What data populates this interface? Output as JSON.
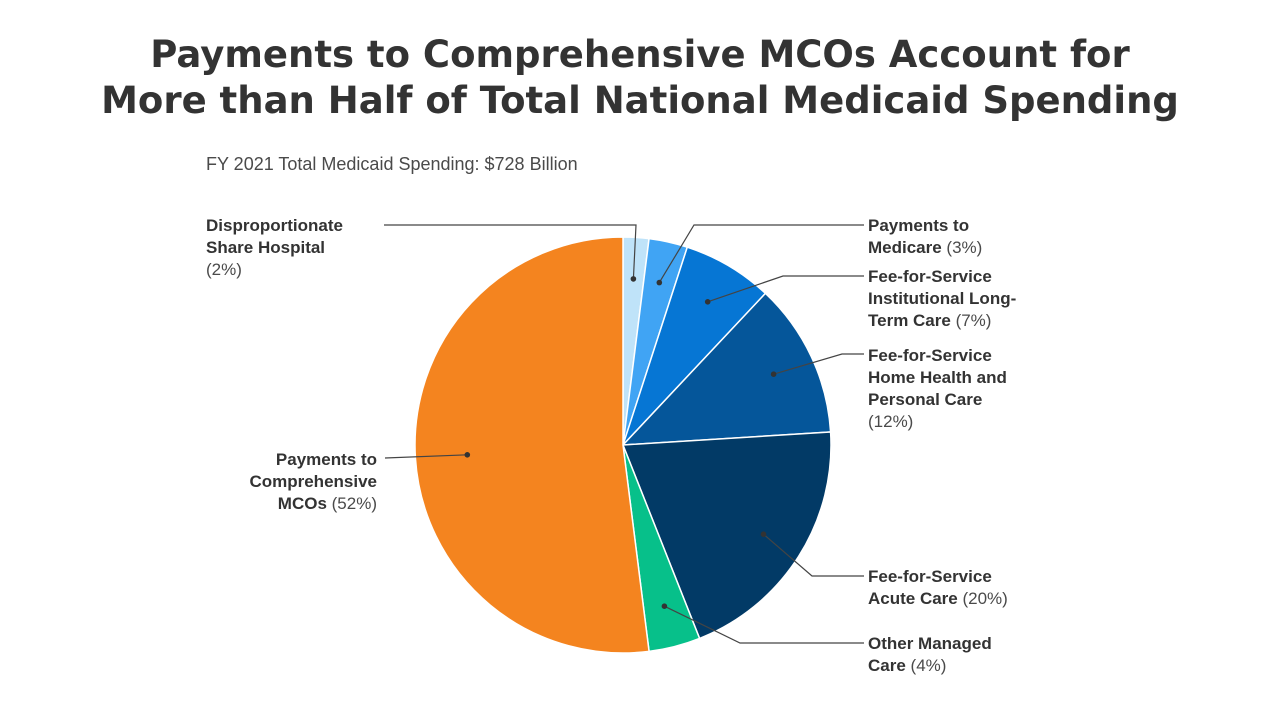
{
  "title": {
    "line1": "Payments to Comprehensive MCOs Account for",
    "line2": "More than Half of Total National Medicaid Spending"
  },
  "subtitle": "FY 2021 Total Medicaid Spending: $728 Billion",
  "chart_data": {
    "type": "pie",
    "title": "Payments to Comprehensive MCOs Account for More than Half of Total National Medicaid Spending",
    "subtitle": "FY 2021 Total Medicaid Spending: $728 Billion",
    "slices": [
      {
        "name": "Disproportionate Share Hospital",
        "value": 2,
        "pct_label": "(2%)",
        "color": "#bfe3f9"
      },
      {
        "name": "Payments to Medicare",
        "value": 3,
        "pct_label": "(3%)",
        "color": "#40a4f4"
      },
      {
        "name": "Fee-for-Service Institutional Long-Term Care",
        "value": 7,
        "pct_label": "(7%)",
        "color": "#0676d4"
      },
      {
        "name": "Fee-for-Service Home Health and Personal Care",
        "value": 12,
        "pct_label": "(12%)",
        "color": "#05569a"
      },
      {
        "name": "Fee-for-Service Acute Care",
        "value": 20,
        "pct_label": "(20%)",
        "color": "#023a66"
      },
      {
        "name": "Other Managed Care",
        "value": 4,
        "pct_label": "(4%)",
        "color": "#07c08a"
      },
      {
        "name": "Payments to Comprehensive MCOs",
        "value": 52,
        "pct_label": "(52%)",
        "color": "#f4841f"
      }
    ]
  }
}
